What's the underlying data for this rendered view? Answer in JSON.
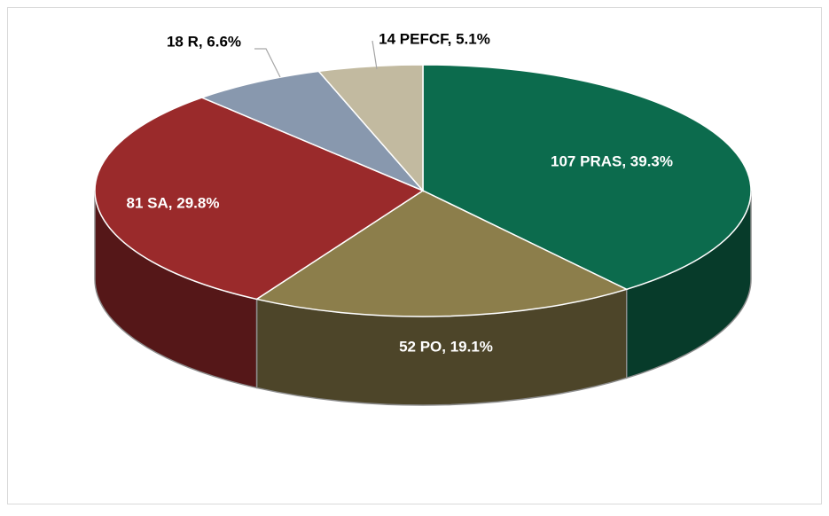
{
  "chart_data": {
    "type": "pie",
    "categories": [
      "PRAS",
      "PO",
      "SA",
      "R",
      "PEFCF"
    ],
    "values": [
      107,
      52,
      81,
      18,
      14
    ],
    "value_labels": [
      "107 PRAS, 39.3%",
      "52 PO, 19.1%",
      "81 SA, 29.8%",
      "18 R, 6.6%",
      "14 PEFCF, 5.1%"
    ],
    "colors": [
      "#0c6b4d",
      "#8c7e4b",
      "#9a2a2b",
      "#8898ae",
      "#c2baa0"
    ],
    "three_d": true
  }
}
